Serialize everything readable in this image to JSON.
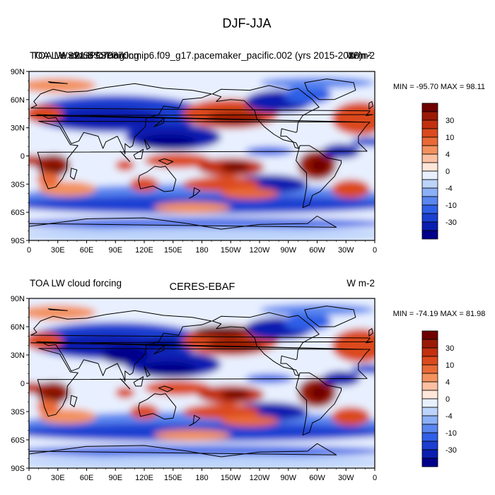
{
  "figure": {
    "title": "DJF-JJA",
    "palette": [
      "#00008b",
      "#0a1fb0",
      "#1b3fd1",
      "#2f5fe6",
      "#5a86ef",
      "#8cb0f7",
      "#bcd3fb",
      "#e8f0ff",
      "#ffe6d8",
      "#fbc0a1",
      "#f3925f",
      "#e96a37",
      "#db4a1f",
      "#c2300f",
      "#9b1a06",
      "#6e0000"
    ],
    "land_color": "#000000"
  },
  "chart_data": [
    {
      "type": "heatmap",
      "title_left": "TOA LW SWSPC70orcing",
      "title_overlap": "TOA LW cloud forcing",
      "title_center": "e.e21.BSSP370cmip6.f09_g17.pacemaker_pacific.002 (yrs 2015-2018)",
      "title_right": "W m-2",
      "title_right_alt": "W/m²",
      "stats_label": "MIN = -95.70 MAX =  98.11",
      "min": -95.7,
      "max": 98.11,
      "xlabel": "",
      "ylabel": "",
      "x_ticks": [
        "0",
        "30E",
        "60E",
        "90E",
        "120E",
        "150E",
        "180",
        "150W",
        "120W",
        "90W",
        "60W",
        "30W",
        "0"
      ],
      "y_ticks": [
        "90N",
        "60N",
        "30N",
        "0",
        "30S",
        "60S",
        "90S"
      ],
      "xlim": [
        0,
        360
      ],
      "ylim": [
        -90,
        90
      ],
      "colorbar_labels": [
        "30",
        "10",
        "4",
        "0",
        "-4",
        "-10",
        "-30"
      ],
      "colorbar_levels": [
        -50,
        -30,
        -20,
        -10,
        -7,
        -4,
        -2,
        0,
        2,
        4,
        7,
        10,
        20,
        30,
        50
      ],
      "grid": false,
      "legend": "right"
    },
    {
      "type": "heatmap",
      "title_left": "TOA LW cloud forcing",
      "title_center": "CERES-EBAF",
      "title_right": "W m-2",
      "stats_label": "MIN = -74.19 MAX =  81.98",
      "min": -74.19,
      "max": 81.98,
      "xlabel": "",
      "ylabel": "",
      "x_ticks": [
        "0",
        "30E",
        "60E",
        "90E",
        "120E",
        "150E",
        "180",
        "150W",
        "120W",
        "90W",
        "60W",
        "30W",
        "0"
      ],
      "y_ticks": [
        "90N",
        "60N",
        "30N",
        "0",
        "30S",
        "60S",
        "90S"
      ],
      "xlim": [
        0,
        360
      ],
      "ylim": [
        -90,
        90
      ],
      "colorbar_labels": [
        "30",
        "10",
        "4",
        "0",
        "-4",
        "-10",
        "-30"
      ],
      "colorbar_levels": [
        -50,
        -30,
        -20,
        -10,
        -7,
        -4,
        -2,
        0,
        2,
        4,
        7,
        10,
        20,
        30,
        50
      ],
      "grid": false,
      "legend": "right"
    }
  ]
}
